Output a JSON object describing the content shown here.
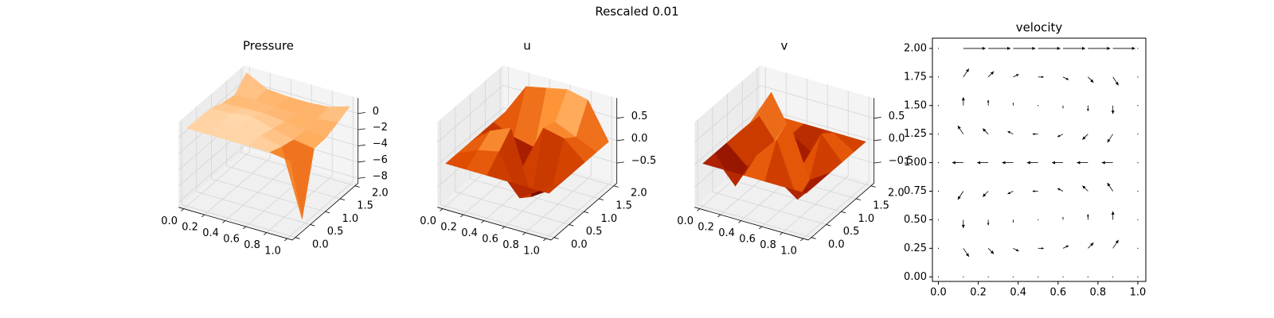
{
  "title": "Rescaled 0.01",
  "chart_data": [
    {
      "type": "surface3d",
      "title": "Pressure",
      "colors": [
        "#3a0000",
        "#a01800",
        "#e04c00",
        "#ff9a3c",
        "#ffe2bf"
      ],
      "x": [
        0,
        0.2,
        0.4,
        0.6,
        0.8,
        1
      ],
      "y": [
        0,
        0.4,
        0.8,
        1.2,
        1.6,
        2
      ],
      "z": [
        [
          1.0,
          1.0,
          1.0,
          1.0,
          1.0,
          0.6
        ],
        [
          1.0,
          1.0,
          1.2,
          1.0,
          0.4,
          -7.8
        ],
        [
          0.9,
          1.0,
          1.4,
          0.6,
          0.0,
          -0.4
        ],
        [
          0.3,
          0.4,
          0.5,
          0.2,
          -0.1,
          -0.3
        ],
        [
          0.0,
          0.1,
          0.0,
          -0.1,
          0.0,
          0.3
        ],
        [
          1.5,
          0.2,
          0.0,
          0.0,
          0.2,
          1.0
        ]
      ],
      "xlim": [
        -0.05,
        1.05
      ],
      "ylim": [
        -0.1,
        2.1
      ],
      "zlim": [
        -8.6,
        1.9
      ],
      "xticks": [
        {
          "value": 0,
          "label": "0.0"
        },
        0.2,
        0.4,
        0.6,
        0.8,
        {
          "value": 1,
          "label": "1.0"
        }
      ],
      "yticks": [
        {
          "value": 0,
          "label": "0.0"
        },
        0.5,
        {
          "value": 1,
          "label": "1.0"
        },
        1.5,
        {
          "value": 2,
          "label": "2.0"
        }
      ],
      "zticks": [
        {
          "value": -8,
          "label": "−8"
        },
        {
          "value": -6,
          "label": "−6"
        },
        {
          "value": -4,
          "label": "−4"
        },
        {
          "value": -2,
          "label": "−2"
        },
        0
      ]
    },
    {
      "type": "surface3d",
      "title": "u",
      "colors": [
        "#3a0000",
        "#a01800",
        "#e04c00",
        "#ff9a3c",
        "#ffe2bf"
      ],
      "x": [
        0,
        0.2,
        0.4,
        0.6,
        0.8,
        1
      ],
      "y": [
        0,
        0.4,
        0.8,
        1.2,
        1.6,
        2
      ],
      "z": [
        [
          0.0,
          0.0,
          0.0,
          0.0,
          0.0,
          0.0
        ],
        [
          0.0,
          0.2,
          0.3,
          -0.6,
          -0.3,
          0.0
        ],
        [
          0.0,
          0.4,
          0.6,
          -0.8,
          -0.5,
          0.0
        ],
        [
          0.0,
          -0.3,
          -0.5,
          0.5,
          0.4,
          0.0
        ],
        [
          0.0,
          -0.2,
          -0.3,
          0.4,
          0.2,
          0.0
        ],
        [
          0.0,
          0.7,
          0.8,
          0.9,
          0.8,
          0.0
        ]
      ],
      "xlim": [
        -0.05,
        1.05
      ],
      "ylim": [
        -0.1,
        2.1
      ],
      "zlim": [
        -0.95,
        0.95
      ],
      "xticks": [
        {
          "value": 0,
          "label": "0.0"
        },
        0.2,
        0.4,
        0.6,
        0.8,
        {
          "value": 1,
          "label": "1.0"
        }
      ],
      "yticks": [
        {
          "value": 0,
          "label": "0.0"
        },
        0.5,
        {
          "value": 1,
          "label": "1.0"
        },
        1.5,
        {
          "value": 2,
          "label": "2.0"
        }
      ],
      "zticks": [
        {
          "value": -0.5,
          "label": "−0.5"
        },
        {
          "value": 0,
          "label": "0.0"
        },
        0.5
      ]
    },
    {
      "type": "surface3d",
      "title": "v",
      "colors": [
        "#3a0000",
        "#a01800",
        "#e04c00",
        "#ff9a3c",
        "#ffe2bf"
      ],
      "x": [
        0,
        0.2,
        0.4,
        0.6,
        0.8,
        1
      ],
      "y": [
        0,
        0.4,
        0.8,
        1.2,
        1.6,
        2
      ],
      "z": [
        [
          0.0,
          0.0,
          0.0,
          0.0,
          0.0,
          0.0
        ],
        [
          0.0,
          -0.6,
          0.2,
          0.7,
          -0.5,
          0.0
        ],
        [
          0.0,
          -0.4,
          0.1,
          0.9,
          -0.3,
          0.0
        ],
        [
          0.0,
          0.5,
          -0.1,
          -0.4,
          0.5,
          0.0
        ],
        [
          0.0,
          0.8,
          0.0,
          -0.3,
          0.3,
          0.0
        ],
        [
          0.0,
          0.0,
          0.0,
          0.0,
          0.0,
          0.0
        ]
      ],
      "xlim": [
        -0.05,
        1.05
      ],
      "ylim": [
        -0.1,
        2.1
      ],
      "zlim": [
        -0.95,
        0.95
      ],
      "xticks": [
        {
          "value": 0,
          "label": "0.0"
        },
        0.2,
        0.4,
        0.6,
        0.8,
        {
          "value": 1,
          "label": "1.0"
        }
      ],
      "yticks": [
        {
          "value": 0,
          "label": "0.0"
        },
        0.5,
        {
          "value": 1,
          "label": "1.0"
        },
        1.5,
        {
          "value": 2,
          "label": "2.0"
        }
      ],
      "zticks": [
        {
          "value": -0.5,
          "label": "−0.5"
        },
        {
          "value": 0,
          "label": "0.0"
        },
        0.5
      ]
    },
    {
      "type": "quiver",
      "title": "velocity",
      "color": "#000000",
      "x": [
        0,
        0.125,
        0.25,
        0.375,
        0.5,
        0.625,
        0.75,
        0.875,
        1
      ],
      "y": [
        0,
        0.25,
        0.5,
        0.75,
        1,
        1.25,
        1.5,
        1.75,
        2
      ],
      "u": [
        [
          0,
          0,
          0,
          0,
          0,
          0,
          0,
          0,
          0
        ],
        [
          0,
          0.25,
          0.25,
          0.25,
          0.25,
          0.25,
          0.25,
          0.25,
          0
        ],
        [
          0,
          0,
          0,
          0,
          0,
          0,
          0,
          0,
          0
        ],
        [
          0,
          -0.25,
          -0.25,
          -0.25,
          -0.25,
          -0.25,
          -0.25,
          -0.25,
          0
        ],
        [
          0,
          -0.5,
          -0.5,
          -0.5,
          -0.5,
          -0.5,
          -0.5,
          -0.5,
          0
        ],
        [
          0,
          -0.25,
          -0.25,
          -0.25,
          -0.25,
          -0.25,
          -0.25,
          -0.25,
          0
        ],
        [
          0,
          0,
          0,
          0,
          0,
          0,
          0,
          0,
          0
        ],
        [
          0,
          0.25,
          0.25,
          0.25,
          0.25,
          0.25,
          0.25,
          0.25,
          0
        ],
        [
          0,
          1,
          1,
          1,
          1,
          1,
          1,
          1,
          0
        ]
      ],
      "v": [
        [
          0,
          0,
          0,
          0,
          0,
          0,
          0,
          0,
          0
        ],
        [
          0,
          -0.375,
          -0.25,
          -0.125,
          0,
          0.125,
          0.25,
          0.375,
          0
        ],
        [
          0,
          -0.375,
          -0.25,
          -0.125,
          0,
          0.125,
          0.25,
          0.375,
          0
        ],
        [
          0,
          -0.375,
          -0.25,
          -0.125,
          0,
          0.125,
          0.25,
          0.375,
          0
        ],
        [
          0,
          0,
          0,
          0,
          0,
          0,
          0,
          0,
          0
        ],
        [
          0,
          0.375,
          0.25,
          0.125,
          0,
          -0.125,
          -0.25,
          -0.375,
          0
        ],
        [
          0,
          0.375,
          0.25,
          0.125,
          0,
          -0.125,
          -0.25,
          -0.375,
          0
        ],
        [
          0,
          0.375,
          0.25,
          0.125,
          0,
          -0.125,
          -0.25,
          -0.375,
          0
        ],
        [
          0,
          0,
          0,
          0,
          0,
          0,
          0,
          0,
          0
        ]
      ],
      "xlim": [
        -0.03,
        1.04
      ],
      "ylim": [
        -0.04,
        2.09
      ],
      "xticks": [
        {
          "value": 0,
          "label": "0.0"
        },
        0.2,
        0.4,
        0.6,
        0.8,
        {
          "value": 1,
          "label": "1.0"
        }
      ],
      "yticks": [
        {
          "value": 0,
          "label": "0.00"
        },
        0.25,
        {
          "value": 0.5,
          "label": "0.50"
        },
        0.75,
        {
          "value": 1,
          "label": "1.00"
        },
        1.25,
        {
          "value": 1.5,
          "label": "1.50"
        },
        1.75,
        {
          "value": 2,
          "label": "2.00"
        }
      ]
    }
  ]
}
